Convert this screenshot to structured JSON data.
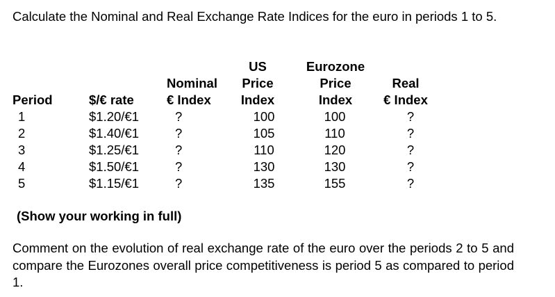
{
  "intro": "Calculate the Nominal and Real Exchange Rate Indices for the euro in periods 1 to 5.",
  "table": {
    "headers": {
      "period": [
        "Period"
      ],
      "rate": [
        "$/€ rate"
      ],
      "nominal": [
        "Nominal",
        "€ Index"
      ],
      "us": [
        "US",
        "Price",
        "Index"
      ],
      "euro": [
        "Eurozone",
        "Price",
        "Index"
      ],
      "real": [
        "Real",
        "€ Index"
      ]
    },
    "rows": [
      {
        "period": "1",
        "rate": "$1.20/€1",
        "nominal": "?",
        "us": "100",
        "euro": "100",
        "real": "?"
      },
      {
        "period": "2",
        "rate": "$1.40/€1",
        "nominal": "?",
        "us": "105",
        "euro": "110",
        "real": "?"
      },
      {
        "period": "3",
        "rate": "$1.25/€1",
        "nominal": "?",
        "us": "110",
        "euro": "120",
        "real": "?"
      },
      {
        "period": "4",
        "rate": "$1.50/€1",
        "nominal": "?",
        "us": "130",
        "euro": "130",
        "real": "?"
      },
      {
        "period": "5",
        "rate": "$1.15/€1",
        "nominal": "?",
        "us": "135",
        "euro": "155",
        "real": "?"
      }
    ]
  },
  "note": "(Show your working in full)",
  "comment": "Comment on the evolution of real exchange rate of the euro over the periods 2 to 5 and compare the Eurozones overall price competitiveness is period 5 as compared to period 1."
}
